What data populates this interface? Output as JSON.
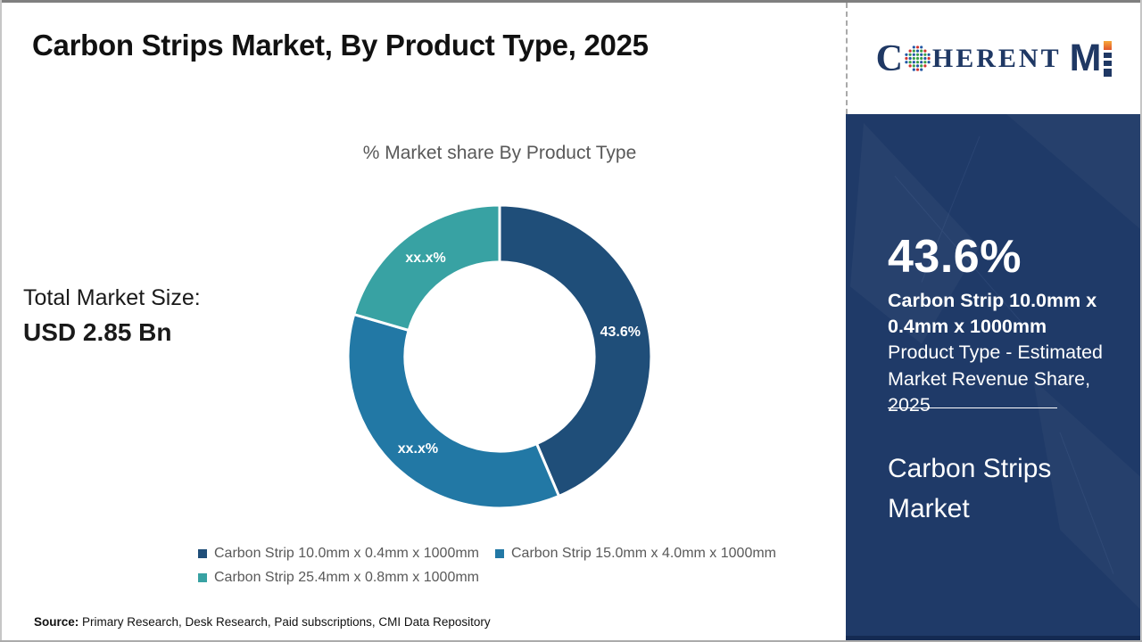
{
  "header": {
    "title": "Carbon Strips Market, By Product Type, 2025"
  },
  "logo": {
    "word_c": "C",
    "word_rest": "HERENT",
    "word_m": "M",
    "navy": "#1F3864",
    "globe_colors": [
      "#3a9e49",
      "#2257a5",
      "#d23430"
    ],
    "i_top_color": "#ef7d2b"
  },
  "left_stat": {
    "label": "Total Market Size:",
    "value": "USD 2.85 Bn"
  },
  "chart_data": {
    "type": "pie",
    "subtype": "donut",
    "title": "% Market share By Product Type",
    "start_angle_deg": 0,
    "inner_radius_ratio": 0.624,
    "legend_position": "bottom",
    "slices": [
      {
        "label": "Carbon Strip 10.0mm x 0.4mm x 1000mm",
        "value": 43.6,
        "display": "43.6%",
        "color": "#1F4E79"
      },
      {
        "label": "Carbon Strip 15.0mm x 4.0mm x 1000mm",
        "value": 35.9,
        "display": "xx.x%",
        "color": "#2278A5"
      },
      {
        "label": "Carbon Strip 25.4mm x 0.8mm x 1000mm",
        "value": 20.5,
        "display": "xx.x%",
        "color": "#38A2A3"
      }
    ]
  },
  "sidebar": {
    "highlight_pct": "43.6%",
    "highlight_bold": "Carbon Strip 10.0mm x 0.4mm x 1000mm",
    "highlight_desc": "Product Type - Estimated Market Revenue Share,",
    "highlight_year": "2025",
    "panel_title": "Carbon Strips Market",
    "bg_color": "#1F3A68"
  },
  "footer": {
    "source_label": "Source:",
    "source_text": " Primary Research, Desk Research, Paid subscriptions, CMI Data Repository"
  }
}
